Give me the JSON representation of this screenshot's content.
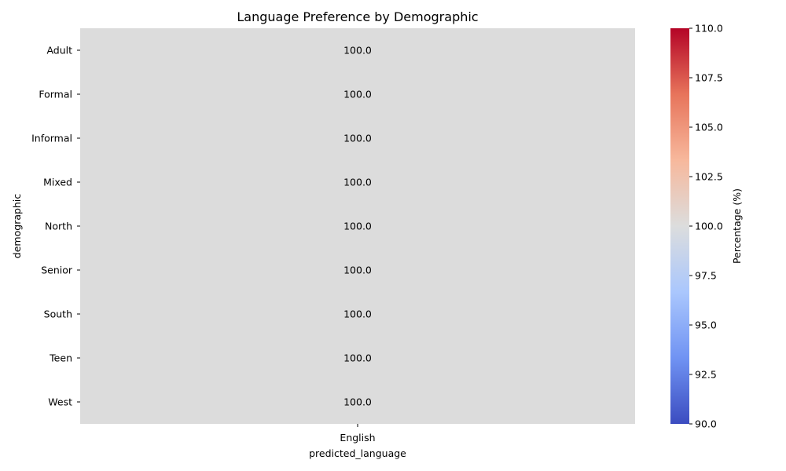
{
  "chart_data": {
    "type": "heatmap",
    "title": "Language Preference by Demographic",
    "xlabel": "predicted_language",
    "ylabel": "demographic",
    "x_categories": [
      "English"
    ],
    "y_categories": [
      "Adult",
      "Formal",
      "Informal",
      "Mixed",
      "North",
      "Senior",
      "South",
      "Teen",
      "West"
    ],
    "values": [
      [
        100.0
      ],
      [
        100.0
      ],
      [
        100.0
      ],
      [
        100.0
      ],
      [
        100.0
      ],
      [
        100.0
      ],
      [
        100.0
      ],
      [
        100.0
      ],
      [
        100.0
      ]
    ],
    "value_format": "0.0",
    "colormap": "coolwarm",
    "colorbar": {
      "label": "Percentage (%)",
      "range": [
        90.0,
        110.0
      ],
      "ticks": [
        "90.0",
        "92.5",
        "95.0",
        "97.5",
        "100.0",
        "102.5",
        "105.0",
        "107.5",
        "110.0"
      ]
    },
    "cell_color": "#dcdcdc",
    "colormap_stops": [
      "#3b4cc0",
      "#7093f3",
      "#aac7fd",
      "#dcdddd",
      "#f7b89c",
      "#e7745b",
      "#b40426"
    ]
  }
}
